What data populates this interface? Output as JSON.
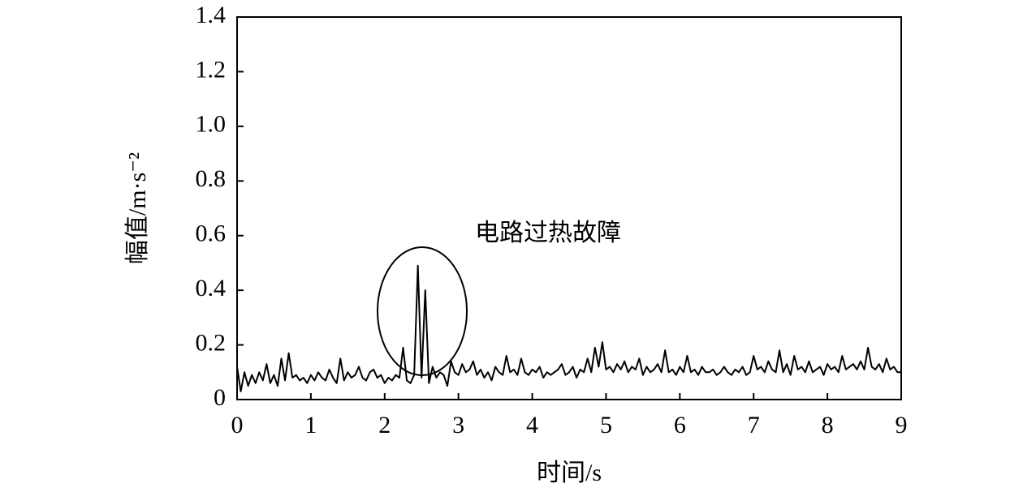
{
  "chart_data": {
    "type": "line",
    "xlabel": "时间/s",
    "ylabel": "幅值/m·s⁻²",
    "annotation": "电路过热故障",
    "xlim": [
      0,
      9
    ],
    "xticks": [
      0,
      1,
      2,
      3,
      4,
      5,
      6,
      7,
      8,
      9
    ],
    "ylim": [
      0,
      1.4
    ],
    "yticks": [
      0,
      0.2,
      0.4,
      0.6,
      0.8,
      {
        "value": 1,
        "label": "1.0"
      },
      1.2,
      1.4
    ],
    "x": [
      0,
      0.05,
      0.1,
      0.15,
      0.2,
      0.25,
      0.3,
      0.35,
      0.4,
      0.45,
      0.5,
      0.55,
      0.6,
      0.65,
      0.7,
      0.75,
      0.8,
      0.85,
      0.9,
      0.95,
      1,
      1.05,
      1.1,
      1.15,
      1.2,
      1.25,
      1.3,
      1.35,
      1.4,
      1.45,
      1.5,
      1.55,
      1.6,
      1.65,
      1.7,
      1.75,
      1.8,
      1.85,
      1.9,
      1.95,
      2,
      2.05,
      2.1,
      2.15,
      2.2,
      2.25,
      2.3,
      2.35,
      2.4,
      2.45,
      2.5,
      2.55,
      2.6,
      2.65,
      2.7,
      2.75,
      2.8,
      2.85,
      2.9,
      2.95,
      3,
      3.05,
      3.1,
      3.15,
      3.2,
      3.25,
      3.3,
      3.35,
      3.4,
      3.45,
      3.5,
      3.55,
      3.6,
      3.65,
      3.7,
      3.75,
      3.8,
      3.85,
      3.9,
      3.95,
      4,
      4.05,
      4.1,
      4.15,
      4.2,
      4.25,
      4.3,
      4.35,
      4.4,
      4.45,
      4.5,
      4.55,
      4.6,
      4.65,
      4.7,
      4.75,
      4.8,
      4.85,
      4.9,
      4.95,
      5,
      5.05,
      5.1,
      5.15,
      5.2,
      5.25,
      5.3,
      5.35,
      5.4,
      5.45,
      5.5,
      5.55,
      5.6,
      5.65,
      5.7,
      5.75,
      5.8,
      5.85,
      5.9,
      5.95,
      6,
      6.05,
      6.1,
      6.15,
      6.2,
      6.25,
      6.3,
      6.35,
      6.4,
      6.45,
      6.5,
      6.55,
      6.6,
      6.65,
      6.7,
      6.75,
      6.8,
      6.85,
      6.9,
      6.95,
      7,
      7.05,
      7.1,
      7.15,
      7.2,
      7.25,
      7.3,
      7.35,
      7.4,
      7.45,
      7.5,
      7.55,
      7.6,
      7.65,
      7.7,
      7.75,
      7.8,
      7.85,
      7.9,
      7.95,
      8,
      8.05,
      8.1,
      8.15,
      8.2,
      8.25,
      8.3,
      8.35,
      8.4,
      8.45,
      8.5,
      8.55,
      8.6,
      8.65,
      8.7,
      8.75,
      8.8,
      8.85,
      8.9,
      8.95,
      9
    ],
    "series": [
      {
        "color": "#000000",
        "values": [
          0.12,
          0.03,
          0.1,
          0.05,
          0.09,
          0.06,
          0.1,
          0.07,
          0.13,
          0.06,
          0.09,
          0.05,
          0.15,
          0.07,
          0.17,
          0.08,
          0.09,
          0.07,
          0.08,
          0.06,
          0.09,
          0.07,
          0.1,
          0.08,
          0.07,
          0.11,
          0.08,
          0.06,
          0.15,
          0.07,
          0.1,
          0.08,
          0.09,
          0.12,
          0.08,
          0.07,
          0.1,
          0.11,
          0.08,
          0.09,
          0.06,
          0.08,
          0.07,
          0.09,
          0.08,
          0.19,
          0.07,
          0.06,
          0.09,
          0.49,
          0.08,
          0.4,
          0.06,
          0.12,
          0.08,
          0.1,
          0.09,
          0.05,
          0.14,
          0.1,
          0.09,
          0.13,
          0.1,
          0.11,
          0.14,
          0.09,
          0.11,
          0.08,
          0.1,
          0.07,
          0.12,
          0.1,
          0.09,
          0.16,
          0.1,
          0.11,
          0.09,
          0.15,
          0.1,
          0.09,
          0.11,
          0.1,
          0.12,
          0.08,
          0.1,
          0.09,
          0.1,
          0.11,
          0.13,
          0.09,
          0.1,
          0.12,
          0.08,
          0.11,
          0.1,
          0.15,
          0.1,
          0.19,
          0.12,
          0.21,
          0.11,
          0.12,
          0.1,
          0.13,
          0.11,
          0.14,
          0.1,
          0.12,
          0.11,
          0.15,
          0.09,
          0.12,
          0.1,
          0.11,
          0.13,
          0.1,
          0.18,
          0.1,
          0.11,
          0.09,
          0.12,
          0.1,
          0.16,
          0.1,
          0.11,
          0.09,
          0.12,
          0.1,
          0.1,
          0.11,
          0.09,
          0.1,
          0.12,
          0.1,
          0.09,
          0.11,
          0.1,
          0.12,
          0.09,
          0.1,
          0.16,
          0.11,
          0.12,
          0.1,
          0.14,
          0.11,
          0.1,
          0.18,
          0.1,
          0.13,
          0.09,
          0.16,
          0.11,
          0.12,
          0.1,
          0.14,
          0.1,
          0.11,
          0.12,
          0.09,
          0.13,
          0.11,
          0.12,
          0.1,
          0.16,
          0.11,
          0.12,
          0.13,
          0.11,
          0.14,
          0.11,
          0.19,
          0.12,
          0.11,
          0.13,
          0.1,
          0.15,
          0.11,
          0.12,
          0.1,
          0.1
        ]
      }
    ]
  }
}
